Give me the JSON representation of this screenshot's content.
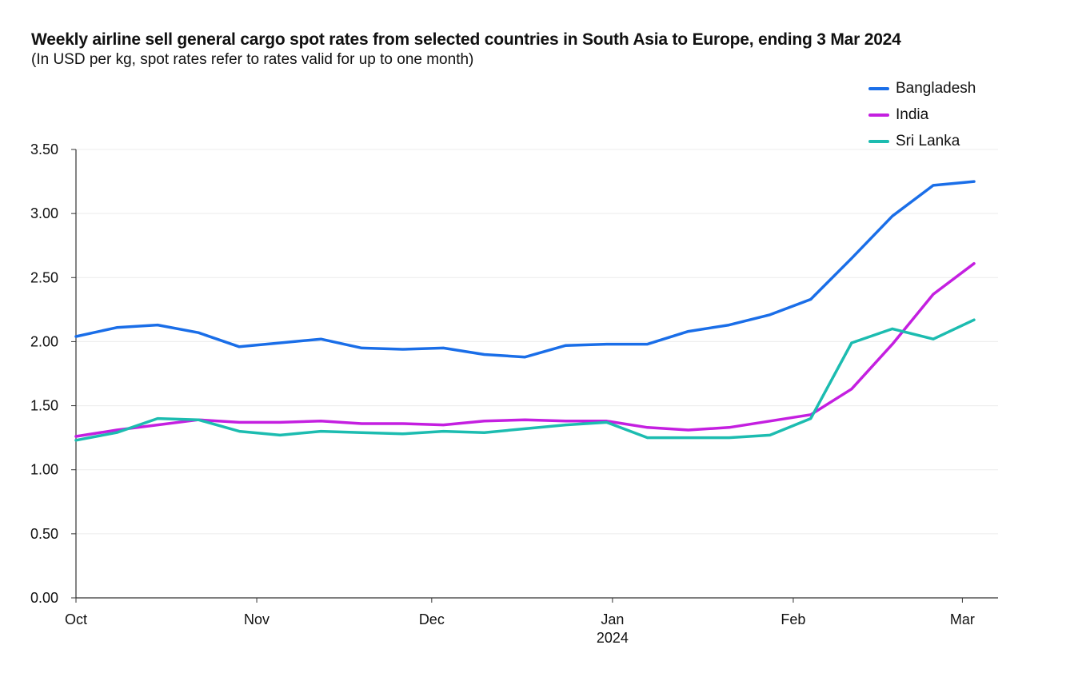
{
  "chart_data": {
    "type": "line",
    "title": "Weekly airline sell general cargo spot rates from selected countries in South Asia to Europe, ending 3 Mar 2024",
    "subtitle": "(In USD per kg, spot rates refer to rates valid for up to one month)",
    "ylim": [
      0,
      3.5
    ],
    "y_ticks": [
      "0.00",
      "0.50",
      "1.00",
      "1.50",
      "2.00",
      "2.50",
      "3.00",
      "3.50"
    ],
    "x_domain": [
      "2023-10-01",
      "2024-03-03"
    ],
    "x_ticks": [
      {
        "date": "2023-10-01",
        "label": "Oct",
        "sublabel": ""
      },
      {
        "date": "2023-11-01",
        "label": "Nov",
        "sublabel": ""
      },
      {
        "date": "2023-12-01",
        "label": "Dec",
        "sublabel": ""
      },
      {
        "date": "2024-01-01",
        "label": "Jan",
        "sublabel": "2024"
      },
      {
        "date": "2024-02-01",
        "label": "Feb",
        "sublabel": ""
      },
      {
        "date": "2024-03-01",
        "label": "Mar",
        "sublabel": ""
      }
    ],
    "grid": true,
    "legend_position": "top-right",
    "x": [
      "2023-10-01",
      "2023-10-08",
      "2023-10-15",
      "2023-10-22",
      "2023-10-29",
      "2023-11-05",
      "2023-11-12",
      "2023-11-19",
      "2023-11-26",
      "2023-12-03",
      "2023-12-10",
      "2023-12-17",
      "2023-12-24",
      "2023-12-31",
      "2024-01-07",
      "2024-01-14",
      "2024-01-21",
      "2024-01-28",
      "2024-02-04",
      "2024-02-11",
      "2024-02-18",
      "2024-02-25",
      "2024-03-03"
    ],
    "series": [
      {
        "name": "Bangladesh",
        "color": "#1a6ee8",
        "values": [
          2.04,
          2.11,
          2.13,
          2.07,
          1.96,
          1.99,
          2.02,
          1.95,
          1.94,
          1.95,
          1.9,
          1.88,
          1.97,
          1.98,
          1.98,
          2.08,
          2.13,
          2.21,
          2.33,
          2.65,
          2.98,
          3.22,
          3.25
        ]
      },
      {
        "name": "India",
        "color": "#c41fe0",
        "values": [
          1.26,
          1.31,
          1.35,
          1.39,
          1.37,
          1.37,
          1.38,
          1.36,
          1.36,
          1.35,
          1.38,
          1.39,
          1.38,
          1.38,
          1.33,
          1.31,
          1.33,
          1.38,
          1.43,
          1.63,
          1.98,
          2.37,
          2.61
        ]
      },
      {
        "name": "Sri Lanka",
        "color": "#1cbcb0",
        "values": [
          1.23,
          1.29,
          1.4,
          1.39,
          1.3,
          1.27,
          1.3,
          1.29,
          1.28,
          1.3,
          1.29,
          1.32,
          1.35,
          1.37,
          1.25,
          1.25,
          1.25,
          1.27,
          1.4,
          1.99,
          2.1,
          2.02,
          2.17
        ]
      }
    ]
  }
}
